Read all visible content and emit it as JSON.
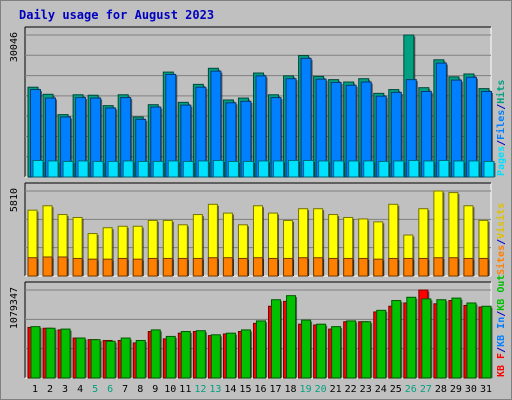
{
  "chart_data": [
    {
      "type": "bar",
      "title": "Daily usage for August 2023",
      "panel": "top",
      "categories": [
        "1",
        "2",
        "3",
        "4",
        "5",
        "6",
        "7",
        "8",
        "9",
        "10",
        "11",
        "12",
        "13",
        "14",
        "15",
        "16",
        "17",
        "18",
        "19",
        "20",
        "21",
        "22",
        "23",
        "24",
        "25",
        "26",
        "27",
        "28",
        "29",
        "30",
        "31"
      ],
      "ymax_label": "30046",
      "ylim": [
        0,
        30046
      ],
      "grid": true,
      "legend": "right side, vertical",
      "series": [
        {
          "name": "Hits",
          "color": "#00a080",
          "values": [
            19000,
            17500,
            13200,
            17400,
            17300,
            15100,
            17400,
            12700,
            15300,
            22200,
            15800,
            19600,
            23000,
            16300,
            16700,
            22000,
            17400,
            21400,
            25700,
            21300,
            20600,
            20100,
            20800,
            17700,
            18500,
            30046,
            18900,
            24800,
            21200,
            21800,
            18700
          ]
        },
        {
          "name": "Files",
          "color": "#0080ff",
          "values": [
            18500,
            16700,
            12700,
            16800,
            16700,
            14600,
            16800,
            12200,
            14800,
            21700,
            15200,
            19000,
            22400,
            15700,
            16000,
            21400,
            16800,
            20800,
            25100,
            20700,
            20000,
            19400,
            20100,
            17100,
            17900,
            20600,
            18100,
            24100,
            20500,
            21100,
            18100
          ]
        },
        {
          "name": "Pages",
          "color": "#00e0ff",
          "values": [
            3500,
            3400,
            3300,
            3400,
            3300,
            3300,
            3400,
            3300,
            3300,
            3400,
            3300,
            3400,
            3500,
            3300,
            3300,
            3400,
            3400,
            3500,
            3500,
            3400,
            3400,
            3400,
            3400,
            3300,
            3400,
            3500,
            3400,
            3500,
            3400,
            3400,
            3300
          ]
        }
      ]
    },
    {
      "type": "bar",
      "panel": "middle",
      "categories": [
        "1",
        "2",
        "3",
        "4",
        "5",
        "6",
        "7",
        "8",
        "9",
        "10",
        "11",
        "12",
        "13",
        "14",
        "15",
        "16",
        "17",
        "18",
        "19",
        "20",
        "21",
        "22",
        "23",
        "24",
        "25",
        "26",
        "27",
        "28",
        "29",
        "30",
        "31"
      ],
      "ymax_label": "5810",
      "ylim": [
        0,
        5810
      ],
      "grid": true,
      "series": [
        {
          "name": "Visits",
          "color": "#ffff00",
          "values": [
            4500,
            4800,
            4200,
            4000,
            2900,
            3300,
            3400,
            3400,
            3800,
            3800,
            3500,
            4200,
            4900,
            4300,
            3500,
            4800,
            4300,
            3800,
            4600,
            4600,
            4200,
            4000,
            3900,
            3700,
            4900,
            2800,
            4600,
            5810,
            5700,
            4800,
            3800
          ]
        },
        {
          "name": "Sites",
          "color": "#ff8000",
          "values": [
            1250,
            1300,
            1300,
            1200,
            1150,
            1150,
            1200,
            1150,
            1200,
            1200,
            1200,
            1200,
            1250,
            1250,
            1200,
            1250,
            1200,
            1200,
            1250,
            1250,
            1200,
            1200,
            1200,
            1150,
            1200,
            1200,
            1200,
            1250,
            1250,
            1200,
            1200
          ]
        }
      ]
    },
    {
      "type": "bar",
      "panel": "bottom",
      "categories": [
        "1",
        "2",
        "3",
        "4",
        "5",
        "6",
        "7",
        "8",
        "9",
        "10",
        "11",
        "12",
        "13",
        "14",
        "15",
        "16",
        "17",
        "18",
        "19",
        "20",
        "21",
        "22",
        "23",
        "24",
        "25",
        "26",
        "27",
        "28",
        "29",
        "30",
        "31"
      ],
      "ymax_label": "1079347",
      "ylim": [
        0,
        1079347
      ],
      "grid": true,
      "series": [
        {
          "name": "KB F",
          "color": "#ff0000",
          "values": [
            620000,
            610000,
            590000,
            490000,
            470000,
            460000,
            460000,
            430000,
            570000,
            480000,
            550000,
            570000,
            520000,
            540000,
            570000,
            670000,
            880000,
            940000,
            660000,
            650000,
            600000,
            690000,
            690000,
            810000,
            880000,
            920000,
            1079347,
            910000,
            950000,
            890000,
            870000
          ]
        },
        {
          "name": "KB In",
          "color": "#0080ff",
          "values": [
            0,
            0,
            0,
            0,
            0,
            0,
            0,
            0,
            0,
            0,
            0,
            0,
            0,
            0,
            0,
            0,
            0,
            0,
            0,
            0,
            0,
            0,
            0,
            0,
            0,
            0,
            0,
            0,
            0,
            0,
            0
          ]
        },
        {
          "name": "KB Out",
          "color": "#00c000",
          "values": [
            630000,
            610000,
            600000,
            490000,
            470000,
            450000,
            490000,
            460000,
            590000,
            510000,
            570000,
            580000,
            530000,
            550000,
            590000,
            700000,
            960000,
            1010000,
            710000,
            660000,
            630000,
            700000,
            690000,
            830000,
            950000,
            990000,
            970000,
            960000,
            980000,
            920000,
            880000
          ]
        }
      ]
    }
  ],
  "legend": {
    "top": [
      {
        "text": "Pages",
        "color": "#00e0ff"
      },
      {
        "text": "/",
        "color": "#0000c0"
      },
      {
        "text": "Files",
        "color": "#0080ff"
      },
      {
        "text": "/",
        "color": "#0000c0"
      },
      {
        "text": "Hits",
        "color": "#00a080"
      }
    ],
    "middle": [
      {
        "text": "Sites",
        "color": "#ff8000"
      },
      {
        "text": "/",
        "color": "#0000c0"
      },
      {
        "text": "Visits",
        "color": "#e0c000"
      }
    ],
    "bottom": [
      {
        "text": "KB F",
        "color": "#ff0000"
      },
      {
        "text": "/",
        "color": "#0000c0"
      },
      {
        "text": "KB In",
        "color": "#0080ff"
      },
      {
        "text": "/",
        "color": "#0000c0"
      },
      {
        "text": "KB Out",
        "color": "#00c000"
      }
    ]
  },
  "weekend_days": [
    "5",
    "6",
    "12",
    "13",
    "19",
    "20",
    "26",
    "27"
  ],
  "colors": {
    "weekday_label": "#000000",
    "weekend_label": "#00a080",
    "panel_bg": "#c0c0c0",
    "grid": "#808080"
  }
}
